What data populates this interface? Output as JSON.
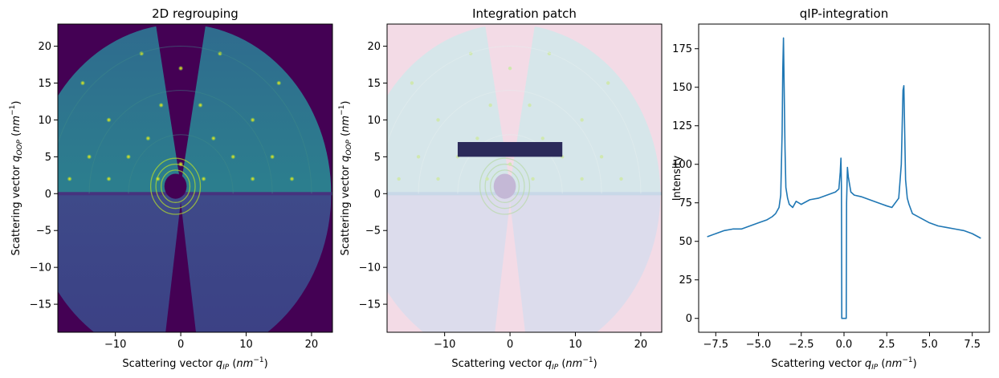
{
  "panels": {
    "left": {
      "title": "2D regrouping",
      "xlabel": "Scattering vector q_IP (nm^-1)",
      "ylabel": "Scattering vector q_OOP (nm^-1)"
    },
    "middle": {
      "title": "Integration patch",
      "xlabel": "Scattering vector q_IP (nm^-1)",
      "ylabel": "Scattering vector q_OOP (nm^-1)"
    },
    "right": {
      "title": "qIP-integration",
      "xlabel": "Scattering vector q_IP (nm^-1)",
      "ylabel": "Intensity"
    }
  },
  "colors": {
    "background": "#440154",
    "detector": "#2a5f7e",
    "detector_light": "#3b7f8c",
    "ring": "#b5de2b",
    "hot": "#fde725",
    "overlay": "#f3dbe6",
    "patch": "#2b2a5a",
    "line": "#1f77b4"
  },
  "chart_data": [
    {
      "type": "heatmap",
      "title": "2D regrouping",
      "xlabel": "Scattering vector q_IP (nm^-1)",
      "ylabel": "Scattering vector q_OOP (nm^-1)",
      "xlim": [
        -18.8,
        23.2
      ],
      "ylim": [
        -18.8,
        23
      ],
      "xticks": [
        -10,
        0,
        10,
        20
      ],
      "yticks": [
        -15,
        -10,
        -5,
        0,
        5,
        10,
        15,
        20
      ],
      "features": {
        "detector_radius": 23,
        "horizon_y": 0,
        "beamstop_center": [
          -0.8,
          1.0
        ],
        "rings_radius": [
          2.2,
          3.0,
          3.8
        ],
        "bragg_peaks": [
          [
            -17,
            2
          ],
          [
            -11,
            2
          ],
          [
            -3.5,
            2
          ],
          [
            3.5,
            2
          ],
          [
            11,
            2
          ],
          [
            17,
            2
          ],
          [
            0,
            4
          ],
          [
            -8,
            5
          ],
          [
            8,
            5
          ],
          [
            -14,
            5
          ],
          [
            14,
            5
          ],
          [
            -5,
            7.5
          ],
          [
            5,
            7.5
          ],
          [
            -11,
            10
          ],
          [
            11,
            10
          ],
          [
            -3,
            12
          ],
          [
            3,
            12
          ],
          [
            -15,
            15
          ],
          [
            15,
            15
          ],
          [
            0,
            17
          ],
          [
            -6,
            19
          ],
          [
            6,
            19
          ]
        ]
      }
    },
    {
      "type": "heatmap",
      "title": "Integration patch",
      "xlabel": "Scattering vector q_IP (nm^-1)",
      "ylabel": "Scattering vector q_OOP (nm^-1)",
      "xlim": [
        -18.8,
        23.2
      ],
      "ylim": [
        -18.8,
        23
      ],
      "xticks": [
        -10,
        0,
        10,
        20
      ],
      "yticks": [
        -15,
        -10,
        -5,
        0,
        5,
        10,
        15,
        20
      ],
      "patch": {
        "x": [
          -8,
          8
        ],
        "y": [
          5,
          7
        ]
      }
    },
    {
      "type": "line",
      "title": "qIP-integration",
      "xlabel": "Scattering vector q_IP (nm^-1)",
      "ylabel": "Intensity",
      "xlim": [
        -8.5,
        8.5
      ],
      "ylim": [
        -9,
        191
      ],
      "xticks": [
        -7.5,
        -5.0,
        -2.5,
        0.0,
        2.5,
        5.0,
        7.5
      ],
      "yticks": [
        0,
        25,
        50,
        75,
        100,
        125,
        150,
        175
      ],
      "series": [
        {
          "x": [
            -8.0,
            -7.5,
            -7.0,
            -6.5,
            -6.0,
            -5.5,
            -5.0,
            -4.5,
            -4.2,
            -4.0,
            -3.8,
            -3.7,
            -3.62,
            -3.58,
            -3.54,
            -3.5,
            -3.45,
            -3.4,
            -3.3,
            -3.2,
            -3.0,
            -2.8,
            -2.5,
            -2.0,
            -1.5,
            -1.0,
            -0.5,
            -0.3,
            -0.22,
            -0.18,
            -0.15,
            -0.13,
            0.13,
            0.15,
            0.2,
            0.25,
            0.4,
            0.6,
            1.0,
            1.5,
            2.0,
            2.5,
            2.8,
            3.0,
            3.2,
            3.35,
            3.45,
            3.5,
            3.55,
            3.6,
            3.7,
            3.8,
            4.0,
            4.5,
            5.0,
            5.5,
            6.0,
            6.5,
            7.0,
            7.5,
            8.0
          ],
          "y": [
            53,
            55,
            57,
            58,
            58,
            60,
            62,
            64,
            66,
            68,
            72,
            80,
            120,
            162,
            182,
            150,
            110,
            85,
            78,
            74,
            72,
            76,
            74,
            77,
            78,
            80,
            82,
            84,
            95,
            104,
            85,
            0,
            0,
            75,
            98,
            92,
            82,
            80,
            79,
            77,
            75,
            73,
            72,
            75,
            78,
            100,
            148,
            151,
            120,
            90,
            78,
            74,
            68,
            65,
            62,
            60,
            59,
            58,
            57,
            55,
            52
          ]
        }
      ]
    }
  ]
}
